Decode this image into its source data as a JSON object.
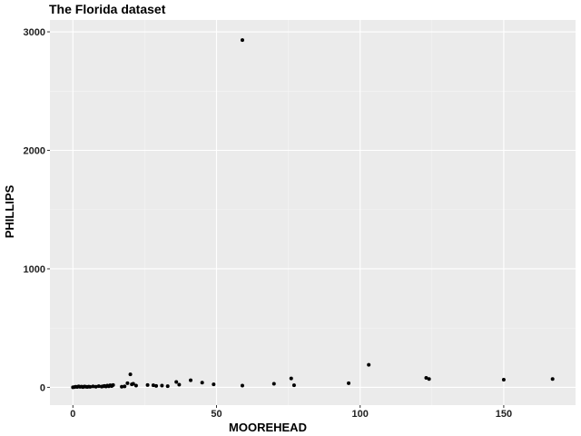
{
  "chart_data": {
    "type": "scatter",
    "title": "The Florida dataset",
    "xlabel": "MOOREHEAD",
    "ylabel": "PHILLIPS",
    "xlim": [
      -8,
      175
    ],
    "ylim": [
      -150,
      3100
    ],
    "xticks": [
      0,
      50,
      100,
      150
    ],
    "yticks": [
      0,
      1000,
      2000,
      3000
    ],
    "grid": true,
    "points": [
      {
        "x": 0,
        "y": 0
      },
      {
        "x": 0.5,
        "y": 2
      },
      {
        "x": 1,
        "y": 5
      },
      {
        "x": 1.5,
        "y": 3
      },
      {
        "x": 2,
        "y": 8
      },
      {
        "x": 2.5,
        "y": 4
      },
      {
        "x": 3,
        "y": 6
      },
      {
        "x": 3.5,
        "y": 2
      },
      {
        "x": 4,
        "y": 7
      },
      {
        "x": 4.5,
        "y": 5
      },
      {
        "x": 5,
        "y": 3
      },
      {
        "x": 5.5,
        "y": 6
      },
      {
        "x": 6,
        "y": 4
      },
      {
        "x": 7,
        "y": 8
      },
      {
        "x": 8,
        "y": 5
      },
      {
        "x": 9,
        "y": 10
      },
      {
        "x": 10,
        "y": 6
      },
      {
        "x": 10.5,
        "y": 9
      },
      {
        "x": 11,
        "y": 12
      },
      {
        "x": 11.5,
        "y": 7
      },
      {
        "x": 12,
        "y": 15
      },
      {
        "x": 12.5,
        "y": 9
      },
      {
        "x": 13,
        "y": 18
      },
      {
        "x": 13.5,
        "y": 11
      },
      {
        "x": 14,
        "y": 20
      },
      {
        "x": 17,
        "y": 5
      },
      {
        "x": 18,
        "y": 8
      },
      {
        "x": 19,
        "y": 35
      },
      {
        "x": 20,
        "y": 110
      },
      {
        "x": 20.5,
        "y": 25
      },
      {
        "x": 21,
        "y": 30
      },
      {
        "x": 22,
        "y": 15
      },
      {
        "x": 26,
        "y": 20
      },
      {
        "x": 28,
        "y": 18
      },
      {
        "x": 29,
        "y": 12
      },
      {
        "x": 31,
        "y": 15
      },
      {
        "x": 33,
        "y": 10
      },
      {
        "x": 36,
        "y": 45
      },
      {
        "x": 37,
        "y": 22
      },
      {
        "x": 41,
        "y": 60
      },
      {
        "x": 45,
        "y": 40
      },
      {
        "x": 49,
        "y": 25
      },
      {
        "x": 59,
        "y": 2930
      },
      {
        "x": 59,
        "y": 15
      },
      {
        "x": 70,
        "y": 30
      },
      {
        "x": 76,
        "y": 75
      },
      {
        "x": 77,
        "y": 18
      },
      {
        "x": 96,
        "y": 35
      },
      {
        "x": 103,
        "y": 190
      },
      {
        "x": 123,
        "y": 80
      },
      {
        "x": 124,
        "y": 70
      },
      {
        "x": 150,
        "y": 65
      },
      {
        "x": 167,
        "y": 70
      }
    ]
  }
}
